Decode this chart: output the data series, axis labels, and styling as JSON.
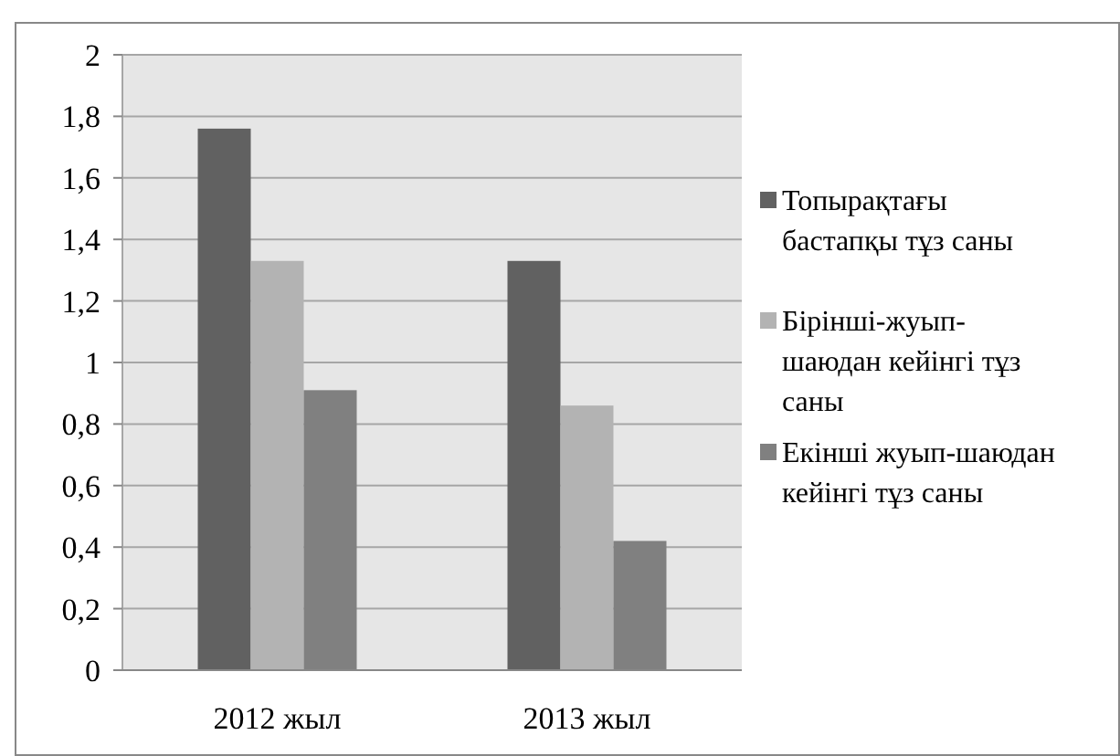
{
  "chart_data": {
    "type": "bar",
    "categories": [
      "2012 жыл",
      "2013 жыл"
    ],
    "series": [
      {
        "name": "Топырақтағы бастапқы тұз саны",
        "color": "#616161",
        "values": [
          1.76,
          1.33
        ]
      },
      {
        "name": "Бірінші-жуып-шаюдан кейінгі тұз саны",
        "color": "#b3b3b3",
        "values": [
          1.33,
          0.86
        ]
      },
      {
        "name": "Екінші жуып-шаюдан кейінгі тұз саны",
        "color": "#808080",
        "values": [
          0.91,
          0.42
        ]
      }
    ],
    "ylim": [
      0,
      2
    ],
    "yticks": [
      0,
      {
        "value": 0.2,
        "label": "0,2"
      },
      {
        "value": 0.4,
        "label": "0,4"
      },
      {
        "value": 0.6,
        "label": "0,6"
      },
      {
        "value": 0.8,
        "label": "0,8"
      },
      1,
      {
        "value": 1.2,
        "label": "1,2"
      },
      {
        "value": 1.4,
        "label": "1,4"
      },
      {
        "value": 1.6,
        "label": "1,6"
      },
      {
        "value": 1.8,
        "label": "1,8"
      },
      2
    ],
    "grid": true,
    "legend": "right"
  }
}
